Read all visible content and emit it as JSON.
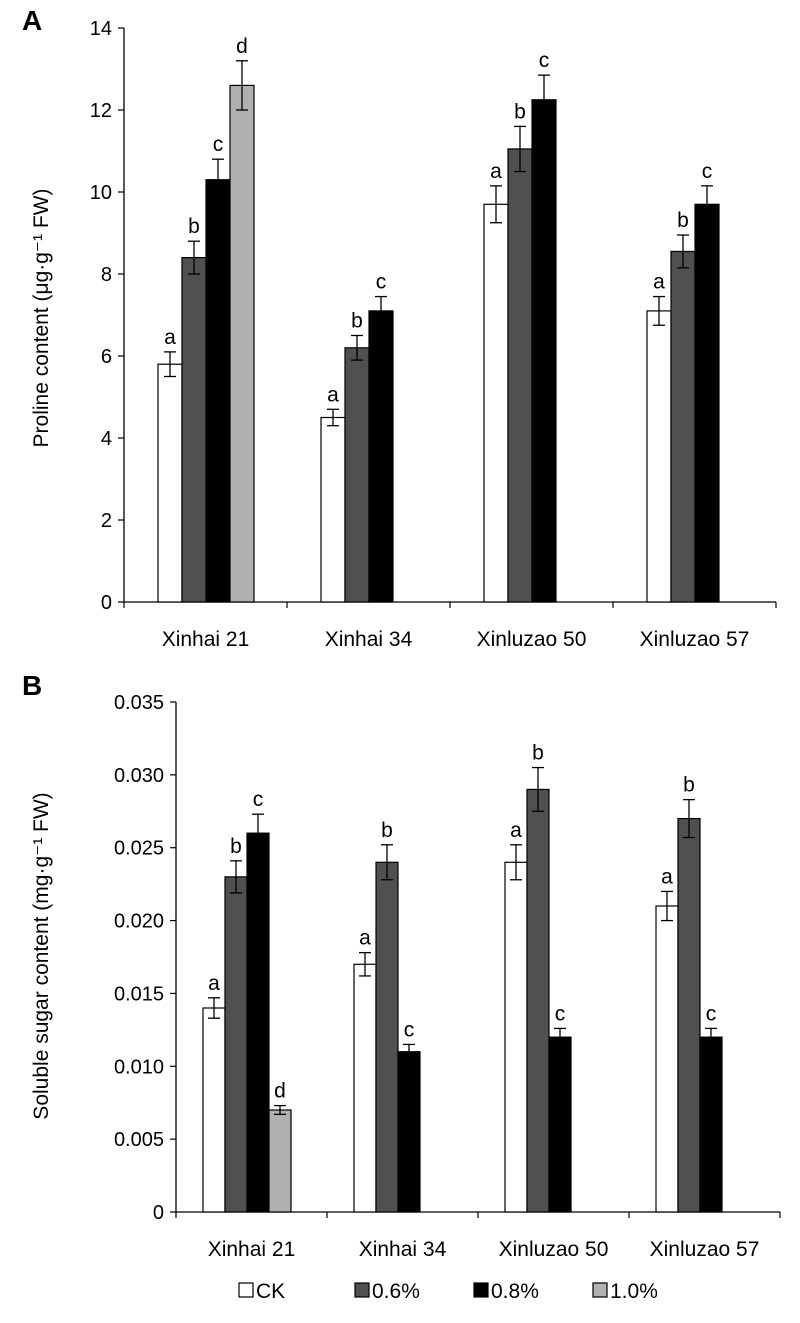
{
  "chart_data": [
    {
      "panel_label": "A",
      "type": "bar",
      "categories": [
        "Xinhai 21",
        "Xinhai 34",
        "Xinluzao 50",
        "Xinluzao 57"
      ],
      "ylabel": "Proline content (μg·g⁻¹ FW)",
      "ylim": [
        0,
        14
      ],
      "yticks": [
        "0",
        "2",
        "4",
        "6",
        "8",
        "10",
        "12",
        "14"
      ],
      "grid": false,
      "series": [
        {
          "name": "CK",
          "values": [
            5.8,
            4.5,
            9.7,
            7.1
          ],
          "errors": [
            0.3,
            0.2,
            0.45,
            0.35
          ],
          "labels": [
            "a",
            "a",
            "a",
            "a"
          ]
        },
        {
          "name": "0.6%",
          "values": [
            8.4,
            6.2,
            11.05,
            8.55
          ],
          "errors": [
            0.4,
            0.3,
            0.55,
            0.4
          ],
          "labels": [
            "b",
            "b",
            "b",
            "b"
          ]
        },
        {
          "name": "0.8%",
          "values": [
            10.3,
            7.1,
            12.25,
            9.7
          ],
          "errors": [
            0.5,
            0.35,
            0.6,
            0.45
          ],
          "labels": [
            "c",
            "c",
            "c",
            "c"
          ]
        },
        {
          "name": "1.0%",
          "values": [
            12.6,
            null,
            null,
            null
          ],
          "errors": [
            0.6,
            null,
            null,
            null
          ],
          "labels": [
            "d",
            "",
            "",
            ""
          ]
        }
      ]
    },
    {
      "panel_label": "B",
      "type": "bar",
      "categories": [
        "Xinhai 21",
        "Xinhai 34",
        "Xinluzao 50",
        "Xinluzao 57"
      ],
      "ylabel": "Soluble sugar content (mg·g⁻¹ FW)",
      "ylim": [
        0,
        0.035
      ],
      "yticks": [
        "0",
        "0.005",
        "0.010",
        "0.015",
        "0.020",
        "0.025",
        "0.030",
        "0.035"
      ],
      "grid": false,
      "legend_position": "bottom",
      "series": [
        {
          "name": "CK",
          "values": [
            0.014,
            0.017,
            0.024,
            0.021
          ],
          "errors": [
            0.0007,
            0.0008,
            0.0012,
            0.001
          ],
          "labels": [
            "a",
            "a",
            "a",
            "a"
          ]
        },
        {
          "name": "0.6%",
          "values": [
            0.023,
            0.024,
            0.029,
            0.027
          ],
          "errors": [
            0.0011,
            0.0012,
            0.0015,
            0.0013
          ],
          "labels": [
            "b",
            "b",
            "b",
            "b"
          ]
        },
        {
          "name": "0.8%",
          "values": [
            0.026,
            0.011,
            0.012,
            0.012
          ],
          "errors": [
            0.0013,
            0.0005,
            0.0006,
            0.0006
          ],
          "labels": [
            "c",
            "c",
            "c",
            "c"
          ]
        },
        {
          "name": "1.0%",
          "values": [
            0.007,
            null,
            null,
            null
          ],
          "errors": [
            0.0003,
            null,
            null,
            null
          ],
          "labels": [
            "d",
            "",
            "",
            ""
          ]
        }
      ]
    }
  ],
  "legend": {
    "items": [
      {
        "label": "CK",
        "color": "#ffffff"
      },
      {
        "label": "0.6%",
        "color": "#505050"
      },
      {
        "label": "0.8%",
        "color": "#000000"
      },
      {
        "label": "1.0%",
        "color": "#b0b0b0"
      }
    ]
  },
  "colors": {
    "CK": "#ffffff",
    "0.6%": "#505050",
    "0.8%": "#000000",
    "1.0%": "#b0b0b0",
    "outline": "#000000"
  }
}
